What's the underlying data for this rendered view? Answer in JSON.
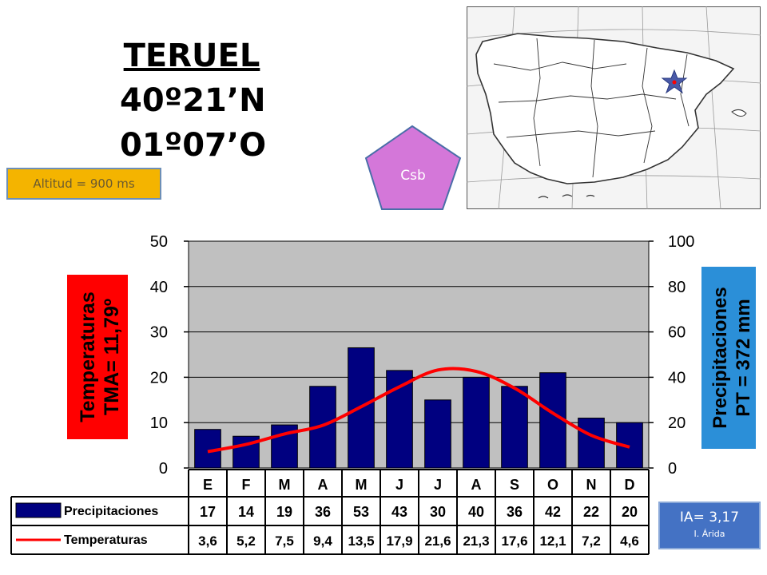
{
  "header": {
    "city": "TERUEL",
    "latitude": "40º21’N",
    "longitude": "01º07’O"
  },
  "altitud_label": "Altitud = 900 ms",
  "climate_badge": {
    "code": "Csb",
    "color": "#d477d9"
  },
  "aridity": {
    "index": "IA= 3,17",
    "type": "I. Árida"
  },
  "temp_axis_label": {
    "line1": "Temperaturas",
    "line2": "TMA= 11,79º",
    "color": "#ff0000"
  },
  "precip_axis_label": {
    "line1": "Precipitaciones",
    "line2": "PT = 372 mm",
    "color": "#2b8fd8"
  },
  "table_labels": {
    "precip": "Precipitaciones",
    "temp": "Temperaturas"
  },
  "map": {
    "marker": "star"
  },
  "chart_data": {
    "type": "bar",
    "categories": [
      "E",
      "F",
      "M",
      "A",
      "M",
      "J",
      "J",
      "A",
      "S",
      "O",
      "N",
      "D"
    ],
    "series": [
      {
        "name": "Precipitaciones",
        "type": "bar",
        "axis": "right",
        "color": "#000080",
        "values": [
          17,
          14,
          19,
          36,
          53,
          43,
          30,
          40,
          36,
          42,
          22,
          20
        ],
        "labels": [
          "17",
          "14",
          "19",
          "36",
          "53",
          "43",
          "30",
          "40",
          "36",
          "42",
          "22",
          "20"
        ]
      },
      {
        "name": "Temperaturas",
        "type": "line",
        "axis": "left",
        "color": "#ff0000",
        "values": [
          3.6,
          5.2,
          7.5,
          9.4,
          13.5,
          17.9,
          21.6,
          21.3,
          17.6,
          12.1,
          7.2,
          4.6
        ],
        "labels": [
          "3,6",
          "5,2",
          "7,5",
          "9,4",
          "13,5",
          "17,9",
          "21,6",
          "21,3",
          "17,6",
          "12,1",
          "7,2",
          "4,6"
        ]
      }
    ],
    "ylim_left": [
      0,
      50
    ],
    "yticks_left": [
      "0",
      "10",
      "20",
      "30",
      "40",
      "50"
    ],
    "ylim_right": [
      0,
      100
    ],
    "yticks_right": [
      "0",
      "20",
      "40",
      "60",
      "80",
      "100"
    ],
    "grid": true,
    "plot_background": "#c0c0c0"
  }
}
